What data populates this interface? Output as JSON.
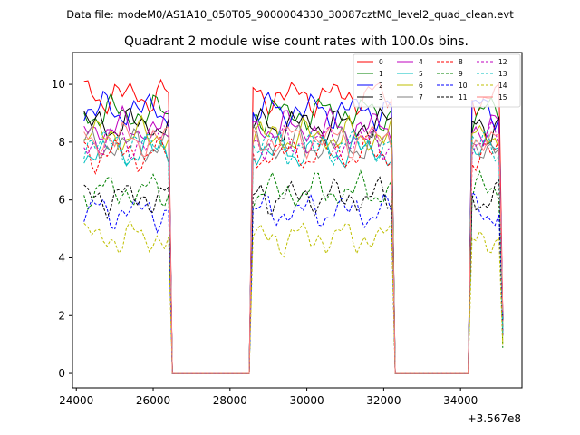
{
  "chart_data": {
    "type": "line",
    "suptitle": "Data file: modeM0/AS1A10_050T05_9000004330_30087cztM0_level2_quad_clean.evt",
    "title": "Quadrant 2 module wise count rates with 100.0s bins.",
    "xlabel": "",
    "ylabel": "",
    "x_offset_label": "+3.567e8",
    "xlim": [
      23900,
      35600
    ],
    "ylim": [
      -0.5,
      11.1
    ],
    "x_ticks": [
      24000,
      26000,
      28000,
      30000,
      32000,
      34000
    ],
    "x_tick_labels": [
      "24000",
      "26000",
      "28000",
      "30000",
      "32000",
      "34000"
    ],
    "y_ticks": [
      0,
      2,
      4,
      6,
      8,
      10
    ],
    "y_tick_labels": [
      "0",
      "2",
      "4",
      "6",
      "8",
      "10"
    ],
    "bin_size": 100,
    "segments": [
      {
        "start": 24200,
        "end": 26400
      },
      {
        "start": 28600,
        "end": 32200
      },
      {
        "start": 34300,
        "end": 35100
      }
    ],
    "legend_position": "upper-right",
    "series": [
      {
        "name": "0",
        "color": "#ff0000",
        "dash": "solid",
        "level": 9.6
      },
      {
        "name": "1",
        "color": "#008000",
        "dash": "solid",
        "level": 9.0
      },
      {
        "name": "2",
        "color": "#0000ff",
        "dash": "solid",
        "level": 9.1
      },
      {
        "name": "3",
        "color": "#000000",
        "dash": "solid",
        "level": 8.6
      },
      {
        "name": "4",
        "color": "#bf00bf",
        "dash": "solid",
        "level": 8.5
      },
      {
        "name": "5",
        "color": "#00bfbf",
        "dash": "solid",
        "level": 7.7
      },
      {
        "name": "6",
        "color": "#bfbf00",
        "dash": "solid",
        "level": 8.2
      },
      {
        "name": "7",
        "color": "#808080",
        "dash": "solid",
        "level": 7.9
      },
      {
        "name": "8",
        "color": "#ff0000",
        "dash": "dashed",
        "level": 7.6
      },
      {
        "name": "9",
        "color": "#008000",
        "dash": "dashed",
        "level": 6.3
      },
      {
        "name": "10",
        "color": "#0000ff",
        "dash": "dashed",
        "level": 5.6
      },
      {
        "name": "11",
        "color": "#000000",
        "dash": "dashed",
        "level": 6.1
      },
      {
        "name": "12",
        "color": "#bf00bf",
        "dash": "dashed",
        "level": 8.0
      },
      {
        "name": "13",
        "color": "#00bfbf",
        "dash": "dashed",
        "level": 7.9
      },
      {
        "name": "14",
        "color": "#bfbf00",
        "dash": "dashed",
        "level": 4.7
      },
      {
        "name": "15",
        "color": "#ff7f7f",
        "dash": "solid",
        "level": 8.1
      }
    ]
  }
}
